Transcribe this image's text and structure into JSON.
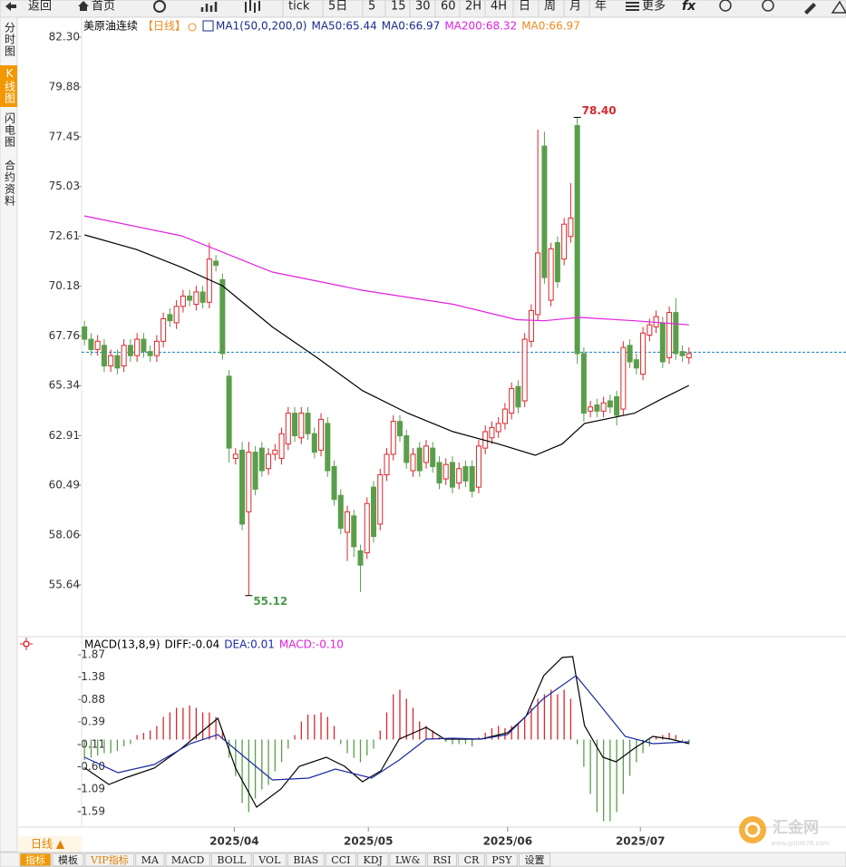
{
  "toolbar": {
    "back": "返回",
    "home": "首页",
    "items": [
      "tick",
      "5日",
      "5",
      "15",
      "30",
      "60",
      "2H",
      "4H",
      "日",
      "周",
      "月",
      "年"
    ],
    "more": "更多"
  },
  "sidebar": [
    "分时图",
    "K线图",
    "闪电图",
    "合约资料"
  ],
  "bottom_bar": {
    "period": "日线 ▲",
    "tabs": [
      "指标",
      "模板",
      "VIP指标",
      "MA",
      "MACD",
      "BOLL",
      "VOL",
      "BIAS",
      "CCI",
      "KDJ",
      "LW&",
      "RSI",
      "CR",
      "PSY",
      "设置"
    ]
  },
  "watermark": {
    "brand": "汇金网",
    "url": "www.gold678.com"
  },
  "chart_data": [
    {
      "type": "candlestick",
      "title": "美原油连续",
      "period": "【日线】",
      "indicator": "MA1(50,0,200,0)",
      "up_color": "#d9262c",
      "down_color": "#5a9e4b",
      "x": [
        0,
        1,
        2,
        3,
        4,
        5,
        6,
        7,
        8,
        9,
        10,
        11,
        12,
        13,
        14,
        15,
        16,
        17,
        18,
        19,
        20,
        21,
        22,
        23,
        24,
        25,
        26,
        27,
        28,
        29,
        30,
        31,
        32,
        33,
        34,
        35,
        36,
        37,
        38,
        39,
        40,
        41,
        42,
        43,
        44,
        45,
        46,
        47,
        48,
        49,
        50,
        51,
        52,
        53,
        54,
        55,
        56,
        57,
        58,
        59,
        60,
        61,
        62,
        63,
        64,
        65,
        66,
        67,
        68,
        69,
        70,
        71,
        72,
        73,
        74,
        75,
        76,
        77,
        78,
        79,
        80,
        81,
        82,
        83,
        84,
        85,
        86,
        87,
        88,
        89,
        90,
        91,
        92
      ],
      "open": [
        68.2,
        67.6,
        67.1,
        67.3,
        66.3,
        66.8,
        66.3,
        67.3,
        66.8,
        67.6,
        67.0,
        66.8,
        67.5,
        68.8,
        68.4,
        69.2,
        69.7,
        69.3,
        69.9,
        69.4,
        71.4,
        70.5,
        65.8,
        61.8,
        62.2,
        59.2,
        62.1,
        62.3,
        61.3,
        62.0,
        61.8,
        62.5,
        64.0,
        62.8,
        64.0,
        63.0,
        62.2,
        63.5,
        61.4,
        60.0,
        58.2,
        59.0,
        57.3,
        57.2,
        60.4,
        58.6,
        61.0,
        62.0,
        63.6,
        62.9,
        61.2,
        62.3,
        61.6,
        62.3,
        61.6,
        60.8,
        61.6,
        60.6,
        61.4,
        61.4,
        60.4,
        62.3,
        62.8,
        63.1,
        63.5,
        64.0,
        65.3,
        64.6,
        67.5,
        68.8,
        77.0,
        69.5,
        72.3,
        71.5,
        72.6,
        78.0,
        66.9,
        64.1,
        64.4,
        64.1,
        64.6,
        64.8,
        64.2,
        67.3,
        66.6,
        65.9,
        67.8,
        68.2,
        68.4,
        66.7,
        68.9,
        67.0,
        66.7
      ],
      "high": [
        68.5,
        67.9,
        67.8,
        67.6,
        67.1,
        67.1,
        67.6,
        67.6,
        67.9,
        67.9,
        67.3,
        67.8,
        68.9,
        69.1,
        69.5,
        70.0,
        70.0,
        70.2,
        70.2,
        72.3,
        71.7,
        70.8,
        66.1,
        62.3,
        62.6,
        62.6,
        62.4,
        62.6,
        62.3,
        62.5,
        63.3,
        64.3,
        64.3,
        64.3,
        64.3,
        63.3,
        64.0,
        63.8,
        61.7,
        60.3,
        59.5,
        59.3,
        57.6,
        59.9,
        60.7,
        61.3,
        62.3,
        63.9,
        63.9,
        63.2,
        62.3,
        62.6,
        62.7,
        62.6,
        61.9,
        61.8,
        61.9,
        61.6,
        61.7,
        61.7,
        62.7,
        63.4,
        63.6,
        63.8,
        64.5,
        65.5,
        65.6,
        67.9,
        69.3,
        77.8,
        77.7,
        72.3,
        72.6,
        73.5,
        75.2,
        78.4,
        67.2,
        64.6,
        64.7,
        64.8,
        64.9,
        65.1,
        67.5,
        67.6,
        66.9,
        68.2,
        68.6,
        69.0,
        68.7,
        69.2,
        69.6,
        67.3,
        67.2
      ],
      "low": [
        67.3,
        66.8,
        66.8,
        66.0,
        66.0,
        65.9,
        66.0,
        66.5,
        66.5,
        66.7,
        66.5,
        66.5,
        67.2,
        68.2,
        68.1,
        68.9,
        69.2,
        69.0,
        69.1,
        69.1,
        70.9,
        66.6,
        61.6,
        61.5,
        58.3,
        55.12,
        60.0,
        60.9,
        61.0,
        61.7,
        61.5,
        62.2,
        62.6,
        62.5,
        62.7,
        61.8,
        61.9,
        60.9,
        59.5,
        58.1,
        56.8,
        57.0,
        55.3,
        56.9,
        57.7,
        58.3,
        60.7,
        61.7,
        62.6,
        61.3,
        60.9,
        60.9,
        61.3,
        61.1,
        60.3,
        60.5,
        60.1,
        60.3,
        60.4,
        59.9,
        60.1,
        62.0,
        62.5,
        62.8,
        63.2,
        63.7,
        64.0,
        64.3,
        67.2,
        68.5,
        70.3,
        69.2,
        70.1,
        71.2,
        72.3,
        66.4,
        63.6,
        63.8,
        63.8,
        63.8,
        64.0,
        63.4,
        63.9,
        66.2,
        65.9,
        65.6,
        67.5,
        67.9,
        66.2,
        66.4,
        66.6,
        66.5,
        66.4
      ],
      "close": [
        67.6,
        67.1,
        67.5,
        66.3,
        66.8,
        66.2,
        67.3,
        66.8,
        67.6,
        67.0,
        66.8,
        67.5,
        68.6,
        68.5,
        69.2,
        69.7,
        69.5,
        69.9,
        69.4,
        71.5,
        71.2,
        66.9,
        62.3,
        62.0,
        58.6,
        62.1,
        60.3,
        61.2,
        62.0,
        62.2,
        63.0,
        64.0,
        62.9,
        64.0,
        63.0,
        62.1,
        63.7,
        61.2,
        59.8,
        58.4,
        59.2,
        57.5,
        56.6,
        59.6,
        58.0,
        61.0,
        62.0,
        63.6,
        62.9,
        61.6,
        62.0,
        61.2,
        62.4,
        61.4,
        60.6,
        61.5,
        60.4,
        61.3,
        60.7,
        60.2,
        62.4,
        63.1,
        63.3,
        63.5,
        64.2,
        65.2,
        64.3,
        67.6,
        69.0,
        71.8,
        70.6,
        72.0,
        70.4,
        73.2,
        73.5,
        66.9,
        64.0,
        64.3,
        64.1,
        64.5,
        64.3,
        63.9,
        67.2,
        66.5,
        66.2,
        67.9,
        68.3,
        68.7,
        66.5,
        68.9,
        66.9,
        66.8,
        66.9
      ],
      "series": [
        {
          "name": "MA50:65.44",
          "color": "#000000",
          "text_color": "#1a2a8a",
          "x": [
            0,
            7.9,
            14.8,
            21,
            28.6,
            35.4,
            42.3,
            49.2,
            56.1,
            63,
            68.6,
            72.7,
            76.1,
            83.7,
            87.9,
            92
          ],
          "values": [
            72.68,
            71.97,
            71.1,
            70.2,
            68.2,
            66.7,
            65.1,
            64.0,
            63.1,
            62.5,
            61.95,
            62.5,
            63.5,
            64.0,
            64.7,
            65.35
          ]
        },
        {
          "name": "MA200:68.32",
          "color": "#e020e0",
          "text_color": "#e020e0",
          "x": [
            0,
            14.8,
            28.6,
            42.3,
            56.1,
            65.8,
            69.9,
            75.4,
            83.7,
            92
          ],
          "values": [
            73.6,
            72.63,
            70.87,
            69.98,
            69.3,
            68.55,
            68.5,
            68.66,
            68.5,
            68.3
          ]
        }
      ],
      "price_line": {
        "value": 66.97,
        "color": "#1a7fc0",
        "labels": [
          {
            "text": "MA0:66.97",
            "color": "#1a2a8a"
          },
          {
            "text": "MA0:66.97",
            "color": "#f08a20"
          }
        ]
      },
      "annotations": [
        {
          "label": "78.40",
          "x": 75,
          "y": 78.4,
          "color": "#d9262c"
        },
        {
          "label": "55.12",
          "x": 25,
          "y": 55.12,
          "color": "#4a9a4a"
        }
      ],
      "xlim": [
        -10.1,
        115.9
      ],
      "xticks": [
        {
          "value": 22.8,
          "label": "2025/04"
        },
        {
          "value": 43.2,
          "label": "2025/05"
        },
        {
          "value": 64.4,
          "label": "2025/06"
        },
        {
          "value": 84.6,
          "label": "2025/07"
        }
      ],
      "ylim": [
        53.21,
        83.23
      ],
      "yticks": [
        {
          "value": 82.3,
          "label": "82.30"
        },
        79.88,
        77.45,
        75.03,
        72.61,
        70.18,
        67.76,
        65.34,
        62.91,
        60.49,
        58.06,
        55.64
      ]
    },
    {
      "type": "macd",
      "title": "MACD(13,8,9)",
      "series": [
        {
          "name": "DIFF:-0.04",
          "color": "#000000",
          "text_color": "#000000",
          "x": [
            0,
            3.7,
            6.5,
            10.6,
            14.8,
            20.3,
            23,
            26.2,
            29.9,
            32.7,
            36.8,
            39.6,
            42.3,
            45.1,
            47.9,
            52,
            54.8,
            60.3,
            64.4,
            67.2,
            69.9,
            72.7,
            74.3,
            76.1,
            78.9,
            80.9,
            83.7,
            86.5,
            89.2,
            92
          ],
          "values": [
            -0.62,
            -0.99,
            -0.83,
            -0.63,
            -0.19,
            0.47,
            -0.63,
            -1.49,
            -1.09,
            -0.59,
            -0.39,
            -0.59,
            -0.93,
            -0.69,
            0.01,
            0.27,
            0.01,
            0.01,
            0.15,
            0.51,
            1.41,
            1.81,
            1.83,
            0.31,
            -0.39,
            -0.49,
            -0.19,
            0.07,
            0.01,
            -0.09
          ]
        },
        {
          "name": "DEA:0.01",
          "color": "#1a2aa0",
          "text_color": "#1a2aa0",
          "x": [
            0,
            5.1,
            10.6,
            16.1,
            20.3,
            24.4,
            28.6,
            34.1,
            38.2,
            43.7,
            47.9,
            52,
            56.1,
            60.3,
            64.4,
            69.9,
            74.8,
            78.2,
            82.3,
            86.5,
            92
          ],
          "values": [
            -0.39,
            -0.73,
            -0.55,
            -0.09,
            0.11,
            -0.39,
            -0.89,
            -0.85,
            -0.65,
            -0.85,
            -0.45,
            0.01,
            0.03,
            0.01,
            0.11,
            0.91,
            1.41,
            0.81,
            0.07,
            -0.09,
            -0.05
          ]
        }
      ],
      "histogram": {
        "name": "MACD:-0.10",
        "text_color": "#e020e0",
        "up_color": "#d9262c",
        "down_color": "#5a9e4b",
        "x": [
          0,
          1,
          2,
          3,
          4,
          5,
          6,
          7,
          8,
          9,
          10,
          11,
          12,
          13,
          14,
          15,
          16,
          17,
          18,
          19,
          20,
          21,
          22,
          23,
          24,
          25,
          26,
          27,
          28,
          29,
          30,
          31,
          32,
          33,
          34,
          35,
          36,
          37,
          38,
          39,
          40,
          41,
          42,
          43,
          44,
          45,
          46,
          47,
          48,
          49,
          50,
          51,
          52,
          53,
          54,
          55,
          56,
          57,
          58,
          59,
          60,
          61,
          62,
          63,
          64,
          65,
          66,
          67,
          68,
          69,
          70,
          71,
          72,
          73,
          74,
          75,
          76,
          77,
          78,
          79,
          80,
          81,
          82,
          83,
          84,
          85,
          86,
          87,
          88,
          89,
          90,
          91,
          92
        ],
        "values": [
          -0.45,
          -0.4,
          -0.35,
          -0.3,
          -0.3,
          -0.25,
          -0.15,
          -0.1,
          0.1,
          0.15,
          0.2,
          0.3,
          0.5,
          0.6,
          0.7,
          0.7,
          0.75,
          0.7,
          0.6,
          0.6,
          0.5,
          0.2,
          -0.4,
          -0.8,
          -1.4,
          -1.6,
          -1.3,
          -1.1,
          -1.0,
          -0.7,
          -0.5,
          -0.2,
          0.1,
          0.4,
          0.55,
          0.55,
          0.6,
          0.5,
          0.3,
          -0.1,
          -0.3,
          -0.4,
          -0.5,
          -0.35,
          -0.2,
          0.2,
          0.6,
          1.0,
          1.1,
          0.9,
          0.7,
          0.4,
          0.3,
          0.2,
          0.05,
          -0.05,
          -0.1,
          -0.1,
          -0.1,
          -0.15,
          0.05,
          0.15,
          0.25,
          0.3,
          0.25,
          0.3,
          0.35,
          0.5,
          0.7,
          0.9,
          1.0,
          1.1,
          1.0,
          1.1,
          0.9,
          -0.1,
          -0.6,
          -1.2,
          -1.6,
          -1.8,
          -1.8,
          -1.6,
          -1.2,
          -0.8,
          -0.5,
          -0.3,
          -0.15,
          0.05,
          0.1,
          0.15,
          0.1,
          -0.05,
          -0.1
        ]
      },
      "ylim": [
        -1.93,
        2.25
      ],
      "yticks": [
        1.87,
        1.38,
        0.88,
        0.39,
        -0.11,
        {
          "value": -0.6,
          "label": "-0.60"
        },
        -1.09,
        -1.59
      ]
    }
  ]
}
